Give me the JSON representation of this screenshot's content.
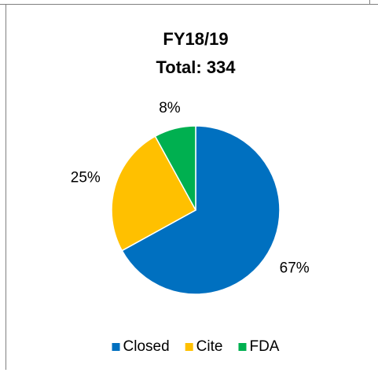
{
  "chart_data": {
    "type": "pie",
    "title": "FY18/19",
    "subtitle": "Total: 334",
    "categories": [
      "Closed",
      "Cite",
      "FDA"
    ],
    "values": [
      67,
      25,
      8
    ],
    "value_labels": [
      "67%",
      "25%",
      "8%"
    ],
    "colors": [
      "#0070c0",
      "#ffc000",
      "#00b050"
    ],
    "legend": "bottom"
  }
}
